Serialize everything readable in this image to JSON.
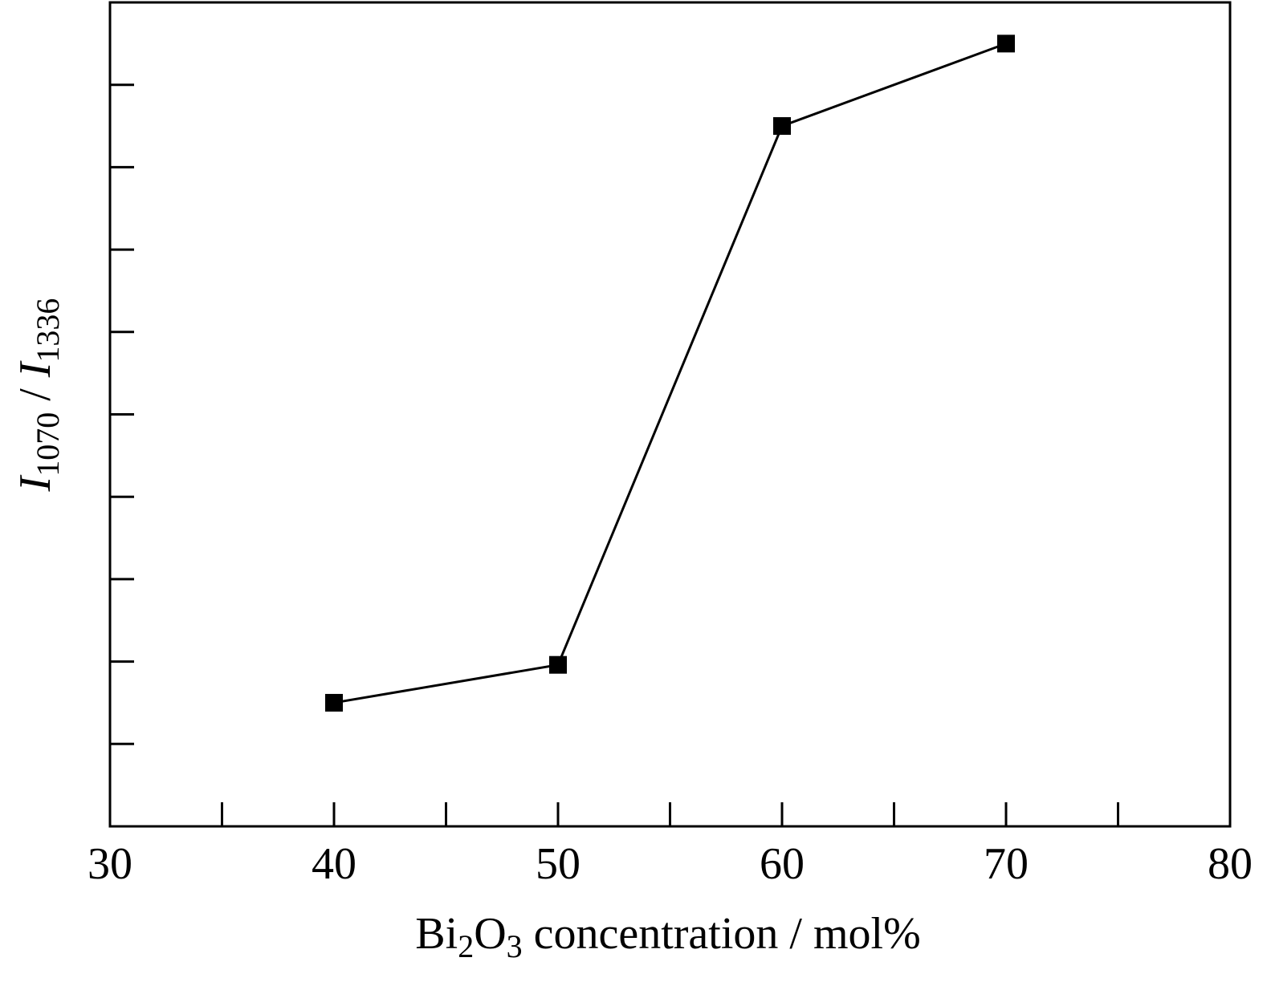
{
  "chart_data": {
    "type": "line",
    "title": "",
    "xlabel": {
      "parts": [
        {
          "text": "Bi",
          "style": "normal"
        },
        {
          "text": "2",
          "style": "sub"
        },
        {
          "text": "O",
          "style": "normal"
        },
        {
          "text": "3",
          "style": "sub"
        },
        {
          "text": " concentration / mol%",
          "style": "normal"
        }
      ]
    },
    "ylabel": {
      "parts": [
        {
          "text": "I",
          "style": "italic"
        },
        {
          "text": "1070",
          "style": "sub"
        },
        {
          "text": " / ",
          "style": "normal"
        },
        {
          "text": "I",
          "style": "italic"
        },
        {
          "text": "1336",
          "style": "sub"
        }
      ]
    },
    "xlim": [
      30,
      80
    ],
    "ylim": [
      0,
      10
    ],
    "x_ticks": [
      30,
      40,
      50,
      60,
      70,
      80
    ],
    "x_tick_labels": [
      "30",
      "40",
      "50",
      "60",
      "70",
      "80"
    ],
    "x_minor_ticks": [
      35,
      45,
      55,
      65,
      75
    ],
    "y_ticks": [
      1,
      2,
      3,
      4,
      5,
      6,
      7,
      8,
      9,
      10
    ],
    "y_tick_labels_visible": false,
    "grid": false,
    "legend": "none",
    "marker": "square",
    "series": [
      {
        "x": [
          40,
          50,
          60,
          70
        ],
        "y": [
          1.5,
          1.96,
          8.5,
          9.5
        ],
        "color": "#000000"
      }
    ]
  }
}
